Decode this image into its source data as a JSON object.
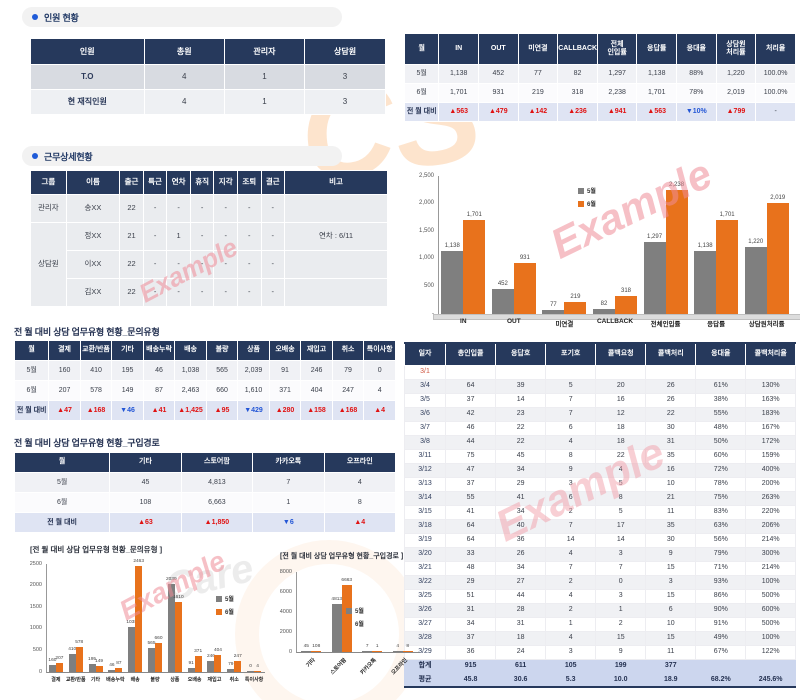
{
  "colors": {
    "navy": "#26395c",
    "bullet_blue": "#1f5bd8",
    "up_red": "#e01212",
    "down_blue": "#2356d6",
    "bar_gray": "#7f7f7f",
    "bar_orange": "#e8721c",
    "date_red": "#d05a45",
    "delta_row_bg": "#dfe4f3",
    "total_row_bg": "#ccd6ee"
  },
  "personnel": {
    "title": "인원 현황",
    "headers": [
      "인원",
      "총원",
      "관리자",
      "상담원"
    ],
    "rows": [
      [
        "T.O",
        "4",
        "1",
        "3"
      ],
      [
        "현 재직인원",
        "4",
        "1",
        "3"
      ]
    ]
  },
  "attendance": {
    "title": "근무상세현황",
    "headers": [
      "그룹",
      "이름",
      "출근",
      "특근",
      "연차",
      "휴직",
      "지각",
      "조퇴",
      "결근",
      "비고"
    ],
    "rows": [
      {
        "group": "관리자",
        "cells": [
          "송XX",
          "22",
          "-",
          "-",
          "-",
          "-",
          "-",
          "-",
          ""
        ]
      },
      {
        "group": "상담원",
        "cells": [
          "정XX",
          "21",
          "-",
          "1",
          "-",
          "-",
          "-",
          "-",
          "연차 : 6/11"
        ]
      },
      {
        "group": "상담원",
        "cells": [
          "이XX",
          "22",
          "-",
          "-",
          "-",
          "-",
          "-",
          "-",
          ""
        ]
      },
      {
        "group": "상담원",
        "cells": [
          "김XX",
          "22",
          "-",
          "-",
          "-",
          "-",
          "-",
          "-",
          ""
        ]
      }
    ]
  },
  "monthly_calls": {
    "headers": [
      "월",
      "IN",
      "OUT",
      "미연결",
      "CALLBACK",
      "전체\n인입률",
      "응답률",
      "응대율",
      "상담원\n처리률",
      "처리율"
    ],
    "rows": [
      [
        "5월",
        "1,138",
        "452",
        "77",
        "82",
        "1,297",
        "1,138",
        "88%",
        "1,220",
        "100.0%"
      ],
      [
        "6월",
        "1,701",
        "931",
        "219",
        "318",
        "2,238",
        "1,701",
        "78%",
        "2,019",
        "100.0%"
      ],
      [
        "전 월 대비",
        "▲563",
        "▲479",
        "▲142",
        "▲236",
        "▲941",
        "▲563",
        "▼10%",
        "▲799",
        "-"
      ]
    ]
  },
  "inquiry_type": {
    "title": "전 월 대비 상담 업무유형 현황_문의유형",
    "headers": [
      "월",
      "결제",
      "교환/반품",
      "기타",
      "배송누락",
      "배송",
      "불량",
      "상품",
      "오배송",
      "재입고",
      "취소",
      "특이사항"
    ],
    "rows": [
      [
        "5월",
        "160",
        "410",
        "195",
        "46",
        "1,038",
        "565",
        "2,039",
        "91",
        "246",
        "79",
        "0"
      ],
      [
        "6월",
        "207",
        "578",
        "149",
        "87",
        "2,463",
        "660",
        "1,610",
        "371",
        "404",
        "247",
        "4"
      ],
      [
        "전 월 대비",
        "▲47",
        "▲168",
        "▼46",
        "▲41",
        "▲1,425",
        "▲95",
        "▼429",
        "▲280",
        "▲158",
        "▲168",
        "▲4"
      ]
    ]
  },
  "purchase_path": {
    "title": "전 월 대비 상담 업무유형 현황_구입경로",
    "headers": [
      "월",
      "기타",
      "스토어팜",
      "카카오톡",
      "오프라인"
    ],
    "rows": [
      [
        "5월",
        "45",
        "4,813",
        "7",
        "4"
      ],
      [
        "6월",
        "108",
        "6,663",
        "1",
        "8"
      ],
      [
        "전 월 대비",
        "▲63",
        "▲1,850",
        "▼6",
        "▲4"
      ]
    ]
  },
  "daily": {
    "headers": [
      "일자",
      "총인입콜",
      "응답호",
      "포기호",
      "콜백요청",
      "콜백처리",
      "응대율",
      "콜백처리율"
    ],
    "rows": [
      [
        "3/1",
        "",
        "",
        "",
        "",
        "",
        "",
        ""
      ],
      [
        "3/4",
        "64",
        "39",
        "5",
        "20",
        "26",
        "61%",
        "130%"
      ],
      [
        "3/5",
        "37",
        "14",
        "7",
        "16",
        "26",
        "38%",
        "163%"
      ],
      [
        "3/6",
        "42",
        "23",
        "7",
        "12",
        "22",
        "55%",
        "183%"
      ],
      [
        "3/7",
        "46",
        "22",
        "6",
        "18",
        "30",
        "48%",
        "167%"
      ],
      [
        "3/8",
        "44",
        "22",
        "4",
        "18",
        "31",
        "50%",
        "172%"
      ],
      [
        "3/11",
        "75",
        "45",
        "8",
        "22",
        "35",
        "60%",
        "159%"
      ],
      [
        "3/12",
        "47",
        "34",
        "9",
        "4",
        "16",
        "72%",
        "400%"
      ],
      [
        "3/13",
        "37",
        "29",
        "3",
        "5",
        "10",
        "78%",
        "200%"
      ],
      [
        "3/14",
        "55",
        "41",
        "6",
        "8",
        "21",
        "75%",
        "263%"
      ],
      [
        "3/15",
        "41",
        "34",
        "2",
        "5",
        "11",
        "83%",
        "220%"
      ],
      [
        "3/18",
        "64",
        "40",
        "7",
        "17",
        "35",
        "63%",
        "206%"
      ],
      [
        "3/19",
        "64",
        "36",
        "14",
        "14",
        "30",
        "56%",
        "214%"
      ],
      [
        "3/20",
        "33",
        "26",
        "4",
        "3",
        "9",
        "79%",
        "300%"
      ],
      [
        "3/21",
        "48",
        "34",
        "7",
        "7",
        "15",
        "71%",
        "214%"
      ],
      [
        "3/22",
        "29",
        "27",
        "2",
        "0",
        "3",
        "93%",
        "100%"
      ],
      [
        "3/25",
        "51",
        "44",
        "4",
        "3",
        "15",
        "86%",
        "500%"
      ],
      [
        "3/26",
        "31",
        "28",
        "2",
        "1",
        "6",
        "90%",
        "600%"
      ],
      [
        "3/27",
        "34",
        "31",
        "1",
        "2",
        "10",
        "91%",
        "500%"
      ],
      [
        "3/28",
        "37",
        "18",
        "4",
        "15",
        "15",
        "49%",
        "100%"
      ],
      [
        "3/29",
        "36",
        "24",
        "3",
        "9",
        "11",
        "67%",
        "122%"
      ]
    ],
    "total_row": [
      "합계",
      "915",
      "611",
      "105",
      "199",
      "377",
      "",
      ""
    ],
    "avg_row": [
      "평균",
      "45.8",
      "30.6",
      "5.3",
      "10.0",
      "18.9",
      "68.2%",
      "245.6%"
    ]
  },
  "watermarks": {
    "example": "Example",
    "logo_cs": "CS",
    "logo_care": "Care"
  },
  "chart_data": [
    {
      "type": "bar",
      "name": "monthly_calls_chart",
      "title": "",
      "categories": [
        "IN",
        "OUT",
        "미연결",
        "CALLBACK",
        "전체인입률",
        "응답률",
        "상담원처리률"
      ],
      "series": [
        {
          "name": "5월",
          "values": [
            1138,
            452,
            77,
            82,
            1297,
            1138,
            1220
          ]
        },
        {
          "name": "6월",
          "values": [
            1701,
            931,
            219,
            318,
            2238,
            1701,
            2019
          ]
        }
      ],
      "xlabel": "",
      "ylabel": "",
      "ylim": [
        0,
        2500
      ],
      "ytick_step": 500,
      "grid": false,
      "legend_position": "top-center",
      "label_format": "comma"
    },
    {
      "type": "bar",
      "name": "inquiry_type_chart",
      "title": "[전 월 대비 상담 업무유형 현황_문의유형 ]",
      "categories": [
        "결제",
        "교환/반품",
        "기타",
        "배송누락",
        "배송",
        "불량",
        "상품",
        "오배송",
        "재입고",
        "취소",
        "특이사항"
      ],
      "series": [
        {
          "name": "5월",
          "values": [
            160,
            410,
            195,
            46,
            1038,
            565,
            2039,
            91,
            246,
            79,
            0
          ]
        },
        {
          "name": "6월",
          "values": [
            207,
            578,
            149,
            87,
            2463,
            660,
            1610,
            371,
            404,
            247,
            4
          ]
        }
      ],
      "xlabel": "",
      "ylabel": "",
      "ylim": [
        0,
        2500
      ],
      "ytick_step": 500,
      "grid": false,
      "legend_position": "right",
      "label_format": "plain"
    },
    {
      "type": "bar",
      "name": "purchase_path_chart",
      "title": "[전 월 대비 상담 업무유형 현황_구입경로 ]",
      "categories": [
        "기타",
        "스토어팜",
        "카카오톡",
        "오프라인"
      ],
      "series": [
        {
          "name": "5월",
          "values": [
            45,
            4813,
            7,
            4
          ]
        },
        {
          "name": "6월",
          "values": [
            108,
            6663,
            1,
            8
          ]
        }
      ],
      "xlabel": "",
      "ylabel": "",
      "ylim": [
        0,
        8000
      ],
      "ytick_step": 2000,
      "grid": false,
      "legend_position": "right",
      "label_format": "plain",
      "rotate_category_labels": true
    }
  ]
}
